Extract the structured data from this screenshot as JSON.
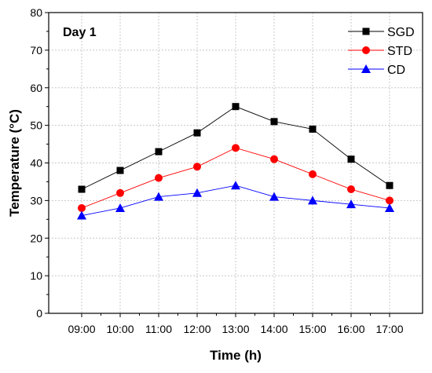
{
  "panel_label": "Day 1",
  "chart_data": {
    "type": "line",
    "title": "",
    "xlabel": "Time (h)",
    "ylabel": "Temperature (°C)",
    "categories": [
      "09:00",
      "10:00",
      "11:00",
      "12:00",
      "13:00",
      "14:00",
      "15:00",
      "16:00",
      "17:00"
    ],
    "ylim": [
      0,
      80
    ],
    "yticks": [
      0,
      10,
      20,
      30,
      40,
      50,
      60,
      70,
      80
    ],
    "grid": true,
    "legend_position": "top-right",
    "series": [
      {
        "name": "SGD",
        "values": [
          33,
          38,
          43,
          48,
          55,
          51,
          49,
          41,
          34
        ],
        "color": "#000000",
        "marker": "square"
      },
      {
        "name": "STD",
        "values": [
          28,
          32,
          36,
          39,
          44,
          41,
          37,
          33,
          30
        ],
        "color": "#ff0000",
        "marker": "circle"
      },
      {
        "name": "CD",
        "values": [
          26,
          28,
          31,
          32,
          34,
          31,
          30,
          29,
          28
        ],
        "color": "#0000ff",
        "marker": "triangle"
      }
    ]
  }
}
